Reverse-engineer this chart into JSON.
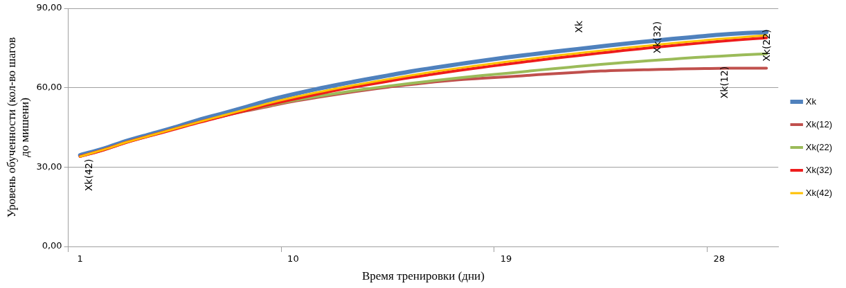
{
  "chart_data": {
    "type": "line",
    "xlabel": "Время тренировки (дни)",
    "ylabel": "Уровень обученности (кол-во шагов до мишени)",
    "categories": [
      "1",
      null,
      null,
      null,
      null,
      null,
      null,
      null,
      null,
      "10",
      null,
      null,
      null,
      null,
      null,
      null,
      null,
      null,
      "19",
      null,
      null,
      null,
      null,
      null,
      null,
      null,
      null,
      "28",
      null,
      null
    ],
    "ylim": [
      0,
      90
    ],
    "yticks": [
      {
        "value": 0,
        "label": "0,00"
      },
      {
        "value": 30,
        "label": "30,00"
      },
      {
        "value": 60,
        "label": "60,00"
      },
      {
        "value": 90,
        "label": "90,00"
      }
    ],
    "grid": "y",
    "legend": "right",
    "marker": "none",
    "line_style": "solid",
    "series": [
      {
        "name": "Xk",
        "color": "#4f81bd",
        "values": [
          34.5,
          37,
          40,
          42.5,
          45,
          47.8,
          50.2,
          52.7,
          55.3,
          57.5,
          59.5,
          61.3,
          63,
          64.6,
          66.2,
          67.6,
          68.9,
          70.2,
          71.4,
          72.5,
          73.6,
          74.6,
          75.6,
          76.6,
          77.5,
          78.4,
          79.2,
          80,
          80.6,
          81
        ]
      },
      {
        "name": "Xk(12)",
        "color": "#c0504d",
        "values": [
          34,
          36.5,
          39.5,
          42,
          44.5,
          47,
          49.2,
          51.2,
          53,
          54.8,
          56.3,
          57.7,
          59,
          60.2,
          61.2,
          62.2,
          63,
          63.6,
          64.1,
          64.7,
          65.3,
          65.8,
          66.3,
          66.6,
          66.8,
          67,
          67.2,
          67.3,
          67.4,
          67.4
        ]
      },
      {
        "name": "Xk(22)",
        "color": "#9bbb59",
        "values": [
          null,
          null,
          null,
          null,
          null,
          null,
          49.3,
          51.4,
          53.3,
          55.1,
          56.7,
          58.1,
          59.4,
          60.6,
          61.7,
          62.7,
          63.7,
          64.6,
          65.4,
          66.3,
          67.2,
          68,
          68.8,
          69.5,
          70.2,
          70.8,
          71.4,
          71.9,
          72.4,
          72.8
        ]
      },
      {
        "name": "Xk(32)",
        "color": "#ee1c1c",
        "values": [
          34,
          36.5,
          39.4,
          41.9,
          44.3,
          46.8,
          49.1,
          51.4,
          53.6,
          55.6,
          57.5,
          59.3,
          60.9,
          62.4,
          63.9,
          65.2,
          66.5,
          67.7,
          68.9,
          70,
          71.1,
          72.1,
          73.1,
          74.1,
          75,
          75.9,
          76.7,
          77.5,
          78.2,
          78.8
        ]
      },
      {
        "name": "Xk(42)",
        "color": "#ffc000",
        "values": [
          34,
          36.6,
          39.5,
          42,
          44.5,
          47,
          49.4,
          51.8,
          54.2,
          56.3,
          58.2,
          60,
          61.6,
          63.2,
          64.7,
          66.1,
          67.4,
          68.6,
          69.8,
          70.9,
          72,
          73,
          74,
          75,
          75.9,
          76.8,
          77.6,
          78.4,
          79.1,
          79.8
        ]
      }
    ],
    "annotations": [
      "Xk(42)",
      "Xk",
      "Xk(32)",
      "Xk(12)",
      "Xk(22)"
    ]
  }
}
